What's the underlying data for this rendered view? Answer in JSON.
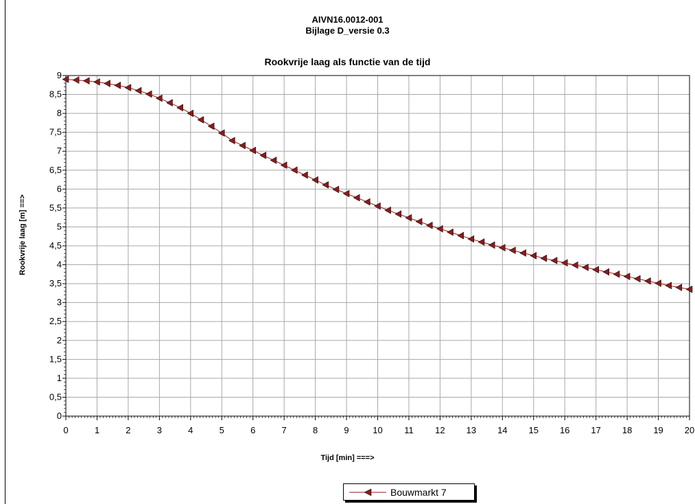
{
  "header": {
    "title_line1": "AIVN16.0012-001",
    "title_line2": "Bijlage D_versie 0.3"
  },
  "chart_data": {
    "type": "line",
    "title": "Rookvrije laag  als functie van de tijd",
    "xlabel": "Tijd [min] ===>",
    "ylabel": "Rookvrije laag [m] ==>",
    "xlim": [
      0,
      20
    ],
    "ylim": [
      0,
      9
    ],
    "x_ticks": [
      "0",
      "1",
      "2",
      "3",
      "4",
      "5",
      "6",
      "7",
      "8",
      "9",
      "10",
      "11",
      "12",
      "13",
      "14",
      "15",
      "16",
      "17",
      "18",
      "19",
      "20"
    ],
    "y_ticks": [
      "0",
      "0,5",
      "1",
      "1,5",
      "2",
      "2,5",
      "3",
      "3,5",
      "4",
      "4,5",
      "5",
      "5,5",
      "6",
      "6,5",
      "7",
      "7,5",
      "8",
      "8,5",
      "9"
    ],
    "grid": true,
    "legend_position": "bottom-center",
    "series": [
      {
        "name": "Bouwmarkt 7",
        "color": "#8B1A1A",
        "marker": "triangle-left",
        "x": [
          0,
          0.333,
          0.667,
          1,
          1.333,
          1.667,
          2,
          2.333,
          2.667,
          3,
          3.333,
          3.667,
          4,
          4.333,
          4.667,
          5,
          5.333,
          5.667,
          6,
          6.333,
          6.667,
          7,
          7.333,
          7.667,
          8,
          8.333,
          8.667,
          9,
          9.333,
          9.667,
          10,
          10.333,
          10.667,
          11,
          11.333,
          11.667,
          12,
          12.333,
          12.667,
          13,
          13.333,
          13.667,
          14,
          14.333,
          14.667,
          15,
          15.333,
          15.667,
          16,
          16.333,
          16.667,
          17,
          17.333,
          17.667,
          18,
          18.333,
          18.667,
          19,
          19.333,
          19.667,
          20
        ],
        "y": [
          8.9,
          8.88,
          8.86,
          8.83,
          8.79,
          8.74,
          8.68,
          8.6,
          8.51,
          8.4,
          8.28,
          8.15,
          8.0,
          7.83,
          7.66,
          7.48,
          7.28,
          7.15,
          7.02,
          6.89,
          6.76,
          6.63,
          6.5,
          6.37,
          6.24,
          6.11,
          5.99,
          5.88,
          5.77,
          5.66,
          5.55,
          5.44,
          5.34,
          5.24,
          5.14,
          5.04,
          4.95,
          4.86,
          4.77,
          4.68,
          4.6,
          4.52,
          4.45,
          4.38,
          4.31,
          4.24,
          4.17,
          4.11,
          4.05,
          3.99,
          3.93,
          3.87,
          3.81,
          3.75,
          3.69,
          3.63,
          3.57,
          3.51,
          3.45,
          3.4,
          3.35
        ]
      }
    ]
  }
}
